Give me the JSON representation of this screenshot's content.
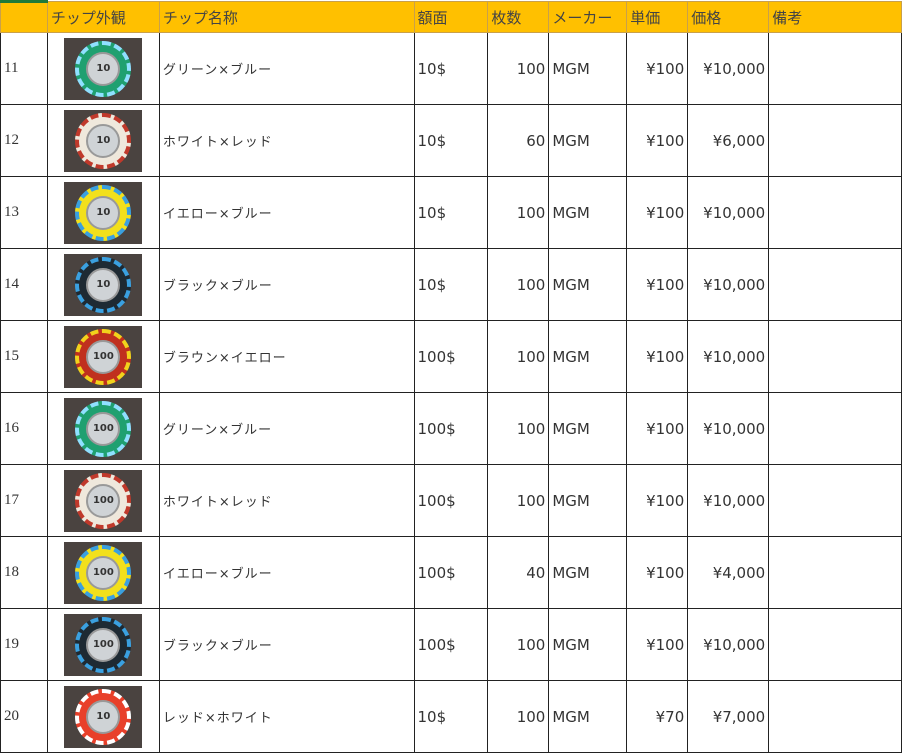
{
  "headers": [
    "",
    "チップ外観",
    "チップ名称",
    "額面",
    "枚数",
    "メーカー",
    "単価",
    "価格",
    "備考"
  ],
  "rows": [
    {
      "no": "11",
      "name": "グリーン×ブルー",
      "face": "10$",
      "count": "100",
      "maker": "MGM",
      "unit": "¥100",
      "price": "¥10,000",
      "note": "",
      "chip": "#1fa070",
      "edge": "#8fe0ff",
      "label": "10"
    },
    {
      "no": "12",
      "name": "ホワイト×レッド",
      "face": "10$",
      "count": "60",
      "maker": "MGM",
      "unit": "¥100",
      "price": "¥6,000",
      "note": "",
      "chip": "#efe8dc",
      "edge": "#c0392b",
      "label": "10"
    },
    {
      "no": "13",
      "name": "イエロー×ブルー",
      "face": "10$",
      "count": "100",
      "maker": "MGM",
      "unit": "¥100",
      "price": "¥10,000",
      "note": "",
      "chip": "#f2e01c",
      "edge": "#3aa0e0",
      "label": "10"
    },
    {
      "no": "14",
      "name": "ブラック×ブルー",
      "face": "10$",
      "count": "100",
      "maker": "MGM",
      "unit": "¥100",
      "price": "¥10,000",
      "note": "",
      "chip": "#1e2a33",
      "edge": "#3aa0e0",
      "label": "10"
    },
    {
      "no": "15",
      "name": "ブラウン×イエロー",
      "face": "100$",
      "count": "100",
      "maker": "MGM",
      "unit": "¥100",
      "price": "¥10,000",
      "note": "",
      "chip": "#c0301e",
      "edge": "#f2d21c",
      "label": "100"
    },
    {
      "no": "16",
      "name": "グリーン×ブルー",
      "face": "100$",
      "count": "100",
      "maker": "MGM",
      "unit": "¥100",
      "price": "¥10,000",
      "note": "",
      "chip": "#1fa070",
      "edge": "#8fe0ff",
      "label": "100"
    },
    {
      "no": "17",
      "name": "ホワイト×レッド",
      "face": "100$",
      "count": "100",
      "maker": "MGM",
      "unit": "¥100",
      "price": "¥10,000",
      "note": "",
      "chip": "#efe8dc",
      "edge": "#c0392b",
      "label": "100"
    },
    {
      "no": "18",
      "name": "イエロー×ブルー",
      "face": "100$",
      "count": "40",
      "maker": "MGM",
      "unit": "¥100",
      "price": "¥4,000",
      "note": "",
      "chip": "#f2e01c",
      "edge": "#3aa0e0",
      "label": "100"
    },
    {
      "no": "19",
      "name": "ブラック×ブルー",
      "face": "100$",
      "count": "100",
      "maker": "MGM",
      "unit": "¥100",
      "price": "¥10,000",
      "note": "",
      "chip": "#1e2a33",
      "edge": "#3aa0e0",
      "label": "100"
    },
    {
      "no": "20",
      "name": "レッド×ホワイト",
      "face": "10$",
      "count": "100",
      "maker": "MGM",
      "unit": "¥70",
      "price": "¥7,000",
      "note": "",
      "chip": "#e8402a",
      "edge": "#ffffff",
      "label": "10"
    }
  ]
}
